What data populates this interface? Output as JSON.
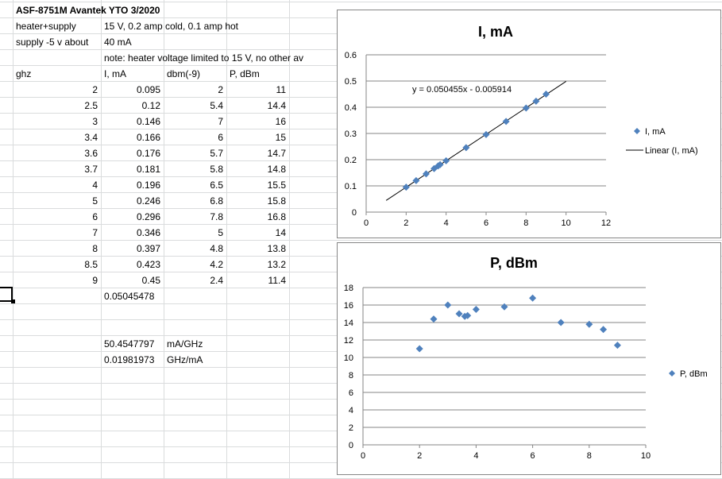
{
  "sheet": {
    "title": "ASF-8751M Avantek YTO 3/2020",
    "rows": [
      [
        "heater+supply",
        "15 V, 0.2 amp cold, 0.1 amp hot",
        "",
        ""
      ],
      [
        "supply -5 v about",
        "40 mA",
        "",
        ""
      ],
      [
        "",
        "note: heater voltage limited to 15 V, no other av",
        "",
        ""
      ],
      [
        "ghz",
        "I, mA",
        "dbm(-9)",
        "P, dBm"
      ],
      [
        "2",
        "0.095",
        "2",
        "11"
      ],
      [
        "2.5",
        "0.12",
        "5.4",
        "14.4"
      ],
      [
        "3",
        "0.146",
        "7",
        "16"
      ],
      [
        "3.4",
        "0.166",
        "6",
        "15"
      ],
      [
        "3.6",
        "0.176",
        "5.7",
        "14.7"
      ],
      [
        "3.7",
        "0.181",
        "5.8",
        "14.8"
      ],
      [
        "4",
        "0.196",
        "6.5",
        "15.5"
      ],
      [
        "5",
        "0.246",
        "6.8",
        "15.8"
      ],
      [
        "6",
        "0.296",
        "7.8",
        "16.8"
      ],
      [
        "7",
        "0.346",
        "5",
        "14"
      ],
      [
        "8",
        "0.397",
        "4.8",
        "13.8"
      ],
      [
        "8.5",
        "0.423",
        "4.2",
        "13.2"
      ],
      [
        "9",
        "0.45",
        "2.4",
        "11.4"
      ],
      [
        "",
        "0.05045478",
        "",
        ""
      ],
      [
        "",
        "",
        "",
        ""
      ],
      [
        "",
        "",
        "",
        ""
      ],
      [
        "",
        "50.4547797",
        "mA/GHz",
        ""
      ],
      [
        "",
        "0.01981973",
        "GHz/mA",
        ""
      ]
    ]
  },
  "chart_data": [
    {
      "type": "scatter",
      "title": "I, mA",
      "x": [
        2,
        2.5,
        3,
        3.4,
        3.6,
        3.7,
        4,
        5,
        6,
        7,
        8,
        8.5,
        9
      ],
      "series": [
        {
          "name": "I, mA",
          "values": [
            0.095,
            0.12,
            0.146,
            0.166,
            0.176,
            0.181,
            0.196,
            0.246,
            0.296,
            0.346,
            0.397,
            0.423,
            0.45
          ],
          "marker": "diamond",
          "color": "#4f81bd"
        }
      ],
      "trendline": {
        "name": "Linear (I, mA)",
        "equation": "y = 0.050455x - 0.005914",
        "slope": 0.050455,
        "intercept": -0.005914,
        "x_range": [
          1,
          10
        ],
        "color": "#000000"
      },
      "xlim": [
        0,
        12
      ],
      "ylim": [
        0,
        0.6
      ],
      "xticks": [
        "0",
        "2",
        "4",
        "6",
        "8",
        "10",
        "12"
      ],
      "yticks": [
        "0",
        "0.1",
        "0.2",
        "0.3",
        "0.4",
        "0.5",
        "0.6"
      ],
      "grid": "horizontal",
      "legend": "right"
    },
    {
      "type": "scatter",
      "title": "P, dBm",
      "x": [
        2,
        2.5,
        3,
        3.4,
        3.6,
        3.7,
        4,
        5,
        6,
        7,
        8,
        8.5,
        9
      ],
      "series": [
        {
          "name": "P, dBm",
          "values": [
            11,
            14.4,
            16,
            15,
            14.7,
            14.8,
            15.5,
            15.8,
            16.8,
            14,
            13.8,
            13.2,
            11.4
          ],
          "marker": "diamond",
          "color": "#4f81bd"
        }
      ],
      "xlim": [
        0,
        10
      ],
      "ylim": [
        0,
        18
      ],
      "xticks": [
        "0",
        "2",
        "4",
        "6",
        "8",
        "10"
      ],
      "yticks": [
        "0",
        "2",
        "4",
        "6",
        "8",
        "10",
        "12",
        "14",
        "16",
        "18"
      ],
      "grid": "horizontal",
      "legend": "right"
    }
  ]
}
